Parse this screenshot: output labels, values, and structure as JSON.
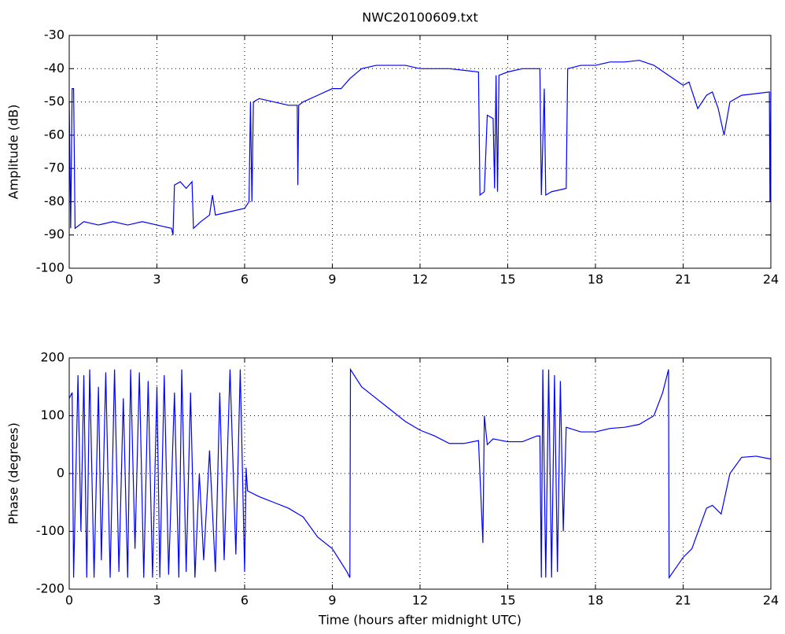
{
  "chart_data": [
    {
      "type": "line",
      "title": "NWC20100609.txt",
      "ylabel": "Amplitude (dB)",
      "grid": true,
      "xlim": [
        0,
        24
      ],
      "xticks": [
        0,
        3,
        6,
        9,
        12,
        15,
        18,
        21,
        24
      ],
      "ylim": [
        -100,
        -30
      ],
      "yticks": [
        -100,
        -90,
        -80,
        -70,
        -60,
        -50,
        -40,
        -30
      ],
      "x": [
        0,
        0.05,
        0.1,
        0.15,
        0.2,
        0.5,
        1,
        1.5,
        2,
        2.5,
        3,
        3.5,
        3.55,
        3.6,
        3.8,
        4.0,
        4.2,
        4.25,
        4.5,
        4.8,
        4.9,
        5.0,
        5.5,
        6.0,
        6.15,
        6.2,
        6.25,
        6.3,
        6.5,
        7,
        7.5,
        7.8,
        7.82,
        7.85,
        8,
        8.5,
        9,
        9.3,
        9.6,
        10,
        10.5,
        11,
        11.5,
        12,
        12.5,
        13,
        13.5,
        14,
        14.05,
        14.2,
        14.3,
        14.5,
        14.55,
        14.6,
        14.65,
        14.7,
        15,
        15.5,
        16,
        16.1,
        16.15,
        16.25,
        16.3,
        16.5,
        17,
        17.05,
        17.5,
        18,
        18.5,
        19,
        19.5,
        20,
        20.5,
        21,
        21.2,
        21.5,
        21.8,
        22,
        22.2,
        22.4,
        22.6,
        23,
        23.5,
        23.95,
        23.97,
        24
      ],
      "series": [
        {
          "name": "Amplitude",
          "color": "#0000ff",
          "values": [
            -50,
            -88,
            -46,
            -46,
            -88,
            -86,
            -87,
            -86,
            -87,
            -86,
            -87,
            -88,
            -90,
            -75,
            -74,
            -76,
            -74,
            -88,
            -86,
            -84,
            -78,
            -84,
            -83,
            -82,
            -80,
            -50,
            -80,
            -50,
            -49,
            -50,
            -51,
            -51,
            -75,
            -51,
            -50,
            -48,
            -46,
            -46,
            -43,
            -40,
            -39,
            -39,
            -39,
            -40,
            -40,
            -40,
            -40.5,
            -41,
            -78,
            -77,
            -54,
            -55,
            -76,
            -42,
            -77,
            -42,
            -41,
            -40,
            -40,
            -40,
            -78,
            -46,
            -78,
            -77,
            -76,
            -40,
            -39,
            -39,
            -38,
            -38,
            -37.5,
            -39,
            -42,
            -45,
            -44,
            -52,
            -48,
            -47,
            -52,
            -60,
            -50,
            -48,
            -47.5,
            -47,
            -80,
            -47
          ]
        }
      ]
    },
    {
      "type": "line",
      "xlabel": "Time (hours after midnight UTC)",
      "ylabel": "Phase (degrees)",
      "grid": true,
      "xlim": [
        0,
        24
      ],
      "xticks": [
        0,
        3,
        6,
        9,
        12,
        15,
        18,
        21,
        24
      ],
      "ylim": [
        -200,
        200
      ],
      "yticks": [
        -200,
        -100,
        0,
        100,
        200
      ],
      "x": [
        0,
        0.1,
        0.15,
        0.3,
        0.4,
        0.5,
        0.6,
        0.7,
        0.85,
        1.0,
        1.1,
        1.25,
        1.4,
        1.55,
        1.7,
        1.85,
        2.0,
        2.1,
        2.25,
        2.4,
        2.55,
        2.7,
        2.85,
        3.0,
        3.1,
        3.25,
        3.4,
        3.6,
        3.75,
        3.85,
        4.0,
        4.15,
        4.3,
        4.45,
        4.6,
        4.8,
        5.0,
        5.15,
        5.3,
        5.5,
        5.7,
        5.85,
        6.0,
        6.05,
        6.1,
        6.5,
        7,
        7.5,
        8,
        8.5,
        9,
        9.5,
        9.6,
        9.62,
        10,
        10.5,
        11,
        11.5,
        12,
        12.5,
        13,
        13.5,
        14,
        14.15,
        14.2,
        14.3,
        14.5,
        15,
        15.5,
        16,
        16.1,
        16.15,
        16.2,
        16.3,
        16.4,
        16.5,
        16.6,
        16.7,
        16.8,
        16.9,
        17,
        17.5,
        18,
        18.5,
        19,
        19.5,
        20,
        20.3,
        20.5,
        20.52,
        21,
        21.3,
        21.8,
        22,
        22.3,
        22.6,
        23,
        23.5,
        24
      ],
      "series": [
        {
          "name": "Phase",
          "color": "#0000ff",
          "values": [
            130,
            140,
            -180,
            170,
            -100,
            170,
            -180,
            180,
            -180,
            150,
            -150,
            175,
            -180,
            180,
            -170,
            130,
            -180,
            180,
            -130,
            175,
            -180,
            160,
            -180,
            150,
            -180,
            170,
            -175,
            140,
            -180,
            180,
            -170,
            140,
            -180,
            0,
            -150,
            40,
            -170,
            140,
            -150,
            180,
            -140,
            180,
            -170,
            10,
            -30,
            -40,
            -50,
            -60,
            -75,
            -110,
            -130,
            -170,
            -180,
            180,
            150,
            130,
            110,
            90,
            75,
            65,
            52,
            52,
            57,
            -120,
            100,
            50,
            60,
            55,
            55,
            65,
            65,
            -180,
            180,
            -180,
            180,
            -180,
            170,
            -170,
            160,
            -100,
            80,
            72,
            72,
            78,
            80,
            85,
            100,
            140,
            180,
            -180,
            -145,
            -130,
            -60,
            -55,
            -70,
            0,
            28,
            30,
            25
          ]
        }
      ]
    }
  ]
}
